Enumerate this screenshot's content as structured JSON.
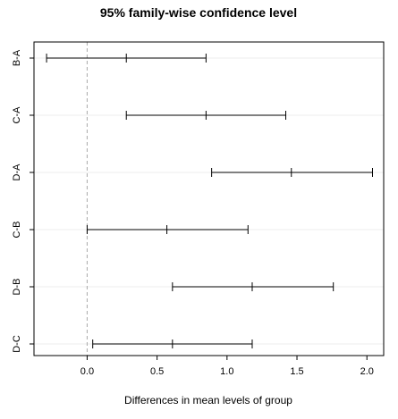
{
  "chart_data": {
    "type": "interval",
    "title": "95% family-wise confidence level",
    "xlabel": "Differences in mean levels of group",
    "ylabel": "",
    "xlim": [
      -0.38,
      2.12
    ],
    "xticks": [
      0.0,
      0.5,
      1.0,
      1.5,
      2.0
    ],
    "xtick_labels": [
      "0.0",
      "0.5",
      "1.0",
      "1.5",
      "2.0"
    ],
    "reference_line": 0,
    "grid": "horizontal light gridlines",
    "categories": [
      "B-A",
      "C-A",
      "D-A",
      "C-B",
      "D-B",
      "D-C"
    ],
    "diff": [
      0.28,
      0.85,
      1.46,
      0.57,
      1.18,
      0.61
    ],
    "lower": [
      -0.29,
      0.28,
      0.89,
      0.0,
      0.61,
      0.04
    ],
    "upper": [
      0.85,
      1.42,
      2.04,
      1.15,
      1.76,
      1.18
    ]
  }
}
